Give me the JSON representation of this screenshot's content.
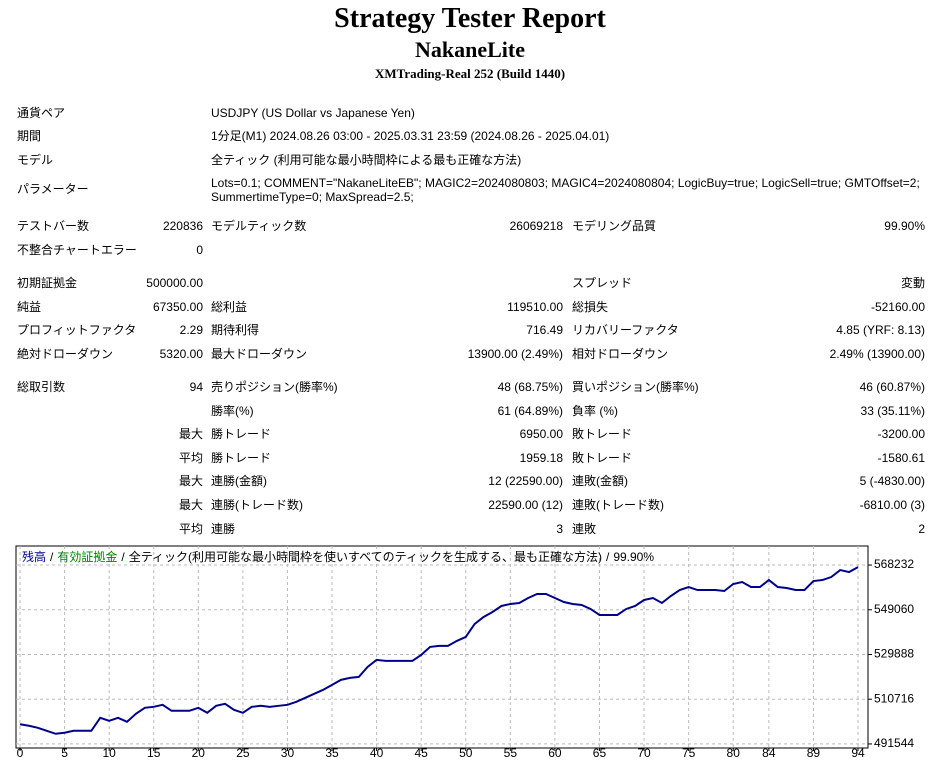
{
  "header": {
    "title": "Strategy Tester Report",
    "expert": "NakaneLite",
    "server": "XMTrading-Real 252 (Build 1440)"
  },
  "info": [
    [
      "通貨ペア",
      "USDJPY (US Dollar vs Japanese Yen)"
    ],
    [
      "期間",
      "1分足(M1) 2024.08.26 03:00 - 2025.03.31 23:59 (2024.08.26 - 2025.04.01)"
    ],
    [
      "モデル",
      "全ティック (利用可能な最小時間枠による最も正確な方法)"
    ],
    [
      "パラメーター",
      "Lots=0.1; COMMENT=\"NakaneLiteEB\"; MAGIC2=2024080803; MAGIC4=2024080804; LogicBuy=true; LogicSell=true; GMTOffset=2; SummertimeType=0; MaxSpread=2.5;"
    ]
  ],
  "stats": [
    [
      [
        "テストバー数",
        "220836",
        "モデルティック数",
        "26069218",
        "モデリング品質",
        "99.90%"
      ],
      [
        "不整合チャートエラー",
        "0",
        null,
        null,
        null,
        null
      ]
    ],
    [
      [
        "初期証拠金",
        "500000.00",
        null,
        null,
        "スプレッド",
        "変動"
      ],
      [
        "純益",
        "67350.00",
        "総利益",
        "119510.00",
        "総損失",
        "-52160.00"
      ],
      [
        "プロフィットファクタ",
        "2.29",
        "期待利得",
        "716.49",
        "リカバリーファクタ",
        "4.85 (YRF: 8.13)"
      ],
      [
        "絶対ドローダウン",
        "5320.00",
        "最大ドローダウン",
        "13900.00 (2.49%)",
        "相対ドローダウン",
        "2.49% (13900.00)"
      ]
    ],
    [
      [
        "総取引数",
        "94",
        "売りポジション(勝率%)",
        "48 (68.75%)",
        "買いポジション(勝率%)",
        "46 (60.87%)"
      ],
      [
        null,
        null,
        "勝率(%)",
        "61 (64.89%)",
        "負率 (%)",
        "33 (35.11%)"
      ],
      [
        null,
        "最大",
        "勝トレード",
        "6950.00",
        "敗トレード",
        "-3200.00"
      ],
      [
        null,
        "平均",
        "勝トレード",
        "1959.18",
        "敗トレード",
        "-1580.61"
      ],
      [
        null,
        "最大",
        "連勝(金額)",
        "12 (22590.00)",
        "連敗(金額)",
        "5 (-4830.00)"
      ],
      [
        null,
        "最大",
        "連勝(トレード数)",
        "22590.00 (12)",
        "連敗(トレード数)",
        "-6810.00 (3)"
      ],
      [
        null,
        "平均",
        "連勝",
        "3",
        "連敗",
        "2"
      ]
    ]
  ],
  "chart_data": {
    "type": "line",
    "legend": [
      {
        "name": "残高",
        "color": "#00008b"
      },
      {
        "name": "有効証拠金",
        "color": "#008000"
      }
    ],
    "separator": "/",
    "mode": "全ティック(利用可能な最小時間枠を使いすべてのティックを生成する、最も正確な方法)",
    "quality": "99.90%",
    "x": [
      0,
      1,
      2,
      3,
      4,
      5,
      6,
      7,
      8,
      9,
      10,
      11,
      12,
      13,
      14,
      15,
      16,
      17,
      18,
      19,
      20,
      21,
      22,
      23,
      24,
      25,
      26,
      27,
      28,
      29,
      30,
      31,
      32,
      33,
      34,
      35,
      36,
      37,
      38,
      39,
      40,
      41,
      42,
      43,
      44,
      45,
      46,
      47,
      48,
      49,
      50,
      51,
      52,
      53,
      54,
      55,
      56,
      57,
      58,
      59,
      60,
      61,
      62,
      63,
      64,
      65,
      66,
      67,
      68,
      69,
      70,
      71,
      72,
      73,
      74,
      75,
      76,
      77,
      78,
      79,
      80,
      81,
      82,
      83,
      84,
      85,
      86,
      87,
      88,
      89,
      90,
      91,
      92,
      93,
      94
    ],
    "series": [
      {
        "name": "残高",
        "color": "#00008b",
        "values": [
          500000,
          499324,
          498468,
          497184,
          495900,
          496328,
          497184,
          497184,
          497184,
          502748,
          501464,
          502748,
          501036,
          504460,
          507028,
          507456,
          508312,
          505744,
          505744,
          505744,
          507028,
          504888,
          507884,
          508740,
          506172,
          504888,
          507456,
          507884,
          507456,
          507884,
          508312,
          509596,
          511308,
          513020,
          514732,
          516872,
          519012,
          519868,
          520296,
          524576,
          527572,
          527144,
          527144,
          527144,
          527144,
          529712,
          533136,
          533564,
          533564,
          535704,
          537416,
          542980,
          545976,
          548116,
          550684,
          551540,
          551968,
          554108,
          555820,
          555820,
          554108,
          552396,
          551540,
          551112,
          549400,
          546832,
          546832,
          546832,
          549400,
          550684,
          553252,
          554108,
          551968,
          554964,
          557532,
          558816,
          557532,
          557532,
          557532,
          557104,
          560100,
          560956,
          558816,
          558816,
          561812,
          558816,
          558388,
          557532,
          557532,
          561384,
          561812,
          563096,
          566092,
          565236,
          567350
        ]
      }
    ],
    "xlim": [
      -0.45,
      95.12
    ],
    "ylim": [
      489800,
      576400
    ],
    "xticks": [
      0,
      5,
      10,
      15,
      20,
      25,
      30,
      35,
      40,
      45,
      50,
      55,
      60,
      65,
      70,
      75,
      80,
      84,
      89,
      94
    ],
    "yticks": [
      491544,
      510716,
      529888,
      549060,
      568232
    ],
    "grid": true
  }
}
